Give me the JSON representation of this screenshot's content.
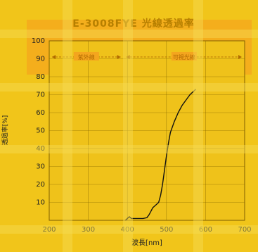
{
  "chart_data": {
    "type": "line",
    "title": "E-3008FYE 光線透過率",
    "xlabel": "波長[nm]",
    "ylabel": "透過率[%]",
    "xlim": [
      200,
      700
    ],
    "ylim": [
      0,
      100
    ],
    "x_ticks": [
      200,
      300,
      400,
      500,
      600,
      700
    ],
    "y_ticks": [
      10,
      20,
      30,
      40,
      50,
      60,
      70,
      80,
      90,
      100
    ],
    "grid": true,
    "annotations": [
      {
        "label": "紫外線",
        "x_start": 200,
        "x_end": 390
      },
      {
        "label": "可視光線",
        "x_start": 390,
        "x_end": 700
      }
    ],
    "series": [
      {
        "name": "",
        "color": "#111111",
        "x": [
          395,
          400,
          405,
          410,
          420,
          430,
          440,
          450,
          455,
          460,
          465,
          470,
          475,
          480,
          485,
          490,
          495,
          500,
          505,
          510,
          520,
          530,
          540,
          550,
          560,
          570,
          575
        ],
        "y": [
          0,
          1,
          2,
          1,
          1,
          1,
          1,
          1.5,
          3,
          5,
          7,
          8,
          9,
          10,
          14,
          20,
          28,
          36,
          43,
          49,
          55,
          60,
          64,
          67,
          70,
          72,
          73
        ]
      }
    ]
  },
  "colors": {
    "background": "#f1c51a",
    "band": "#f4a51e",
    "stripe": "#f7dc55",
    "grid": "#8a6a00",
    "line": "#111111"
  }
}
